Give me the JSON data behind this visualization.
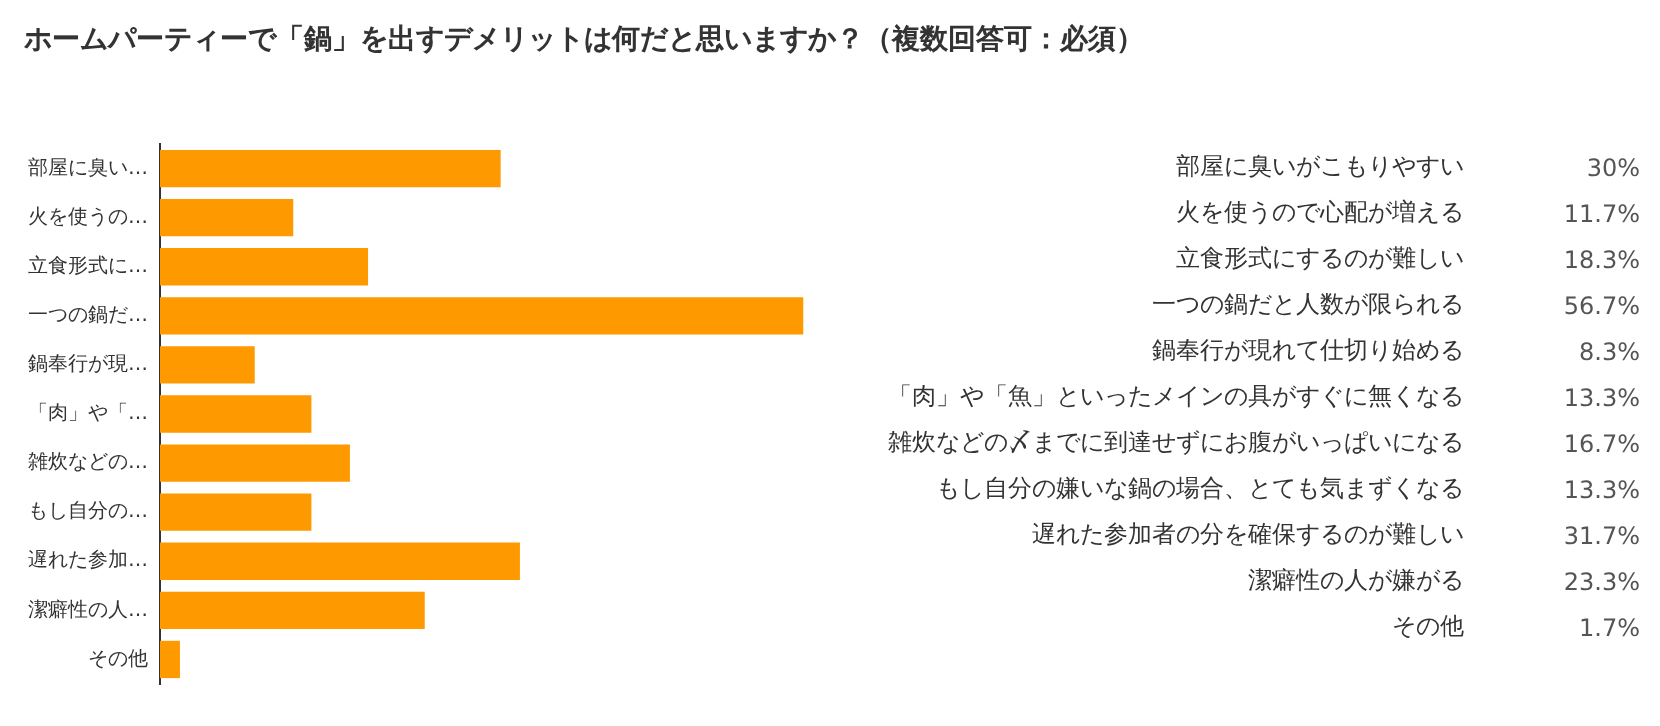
{
  "chart_data": {
    "type": "bar",
    "orientation": "horizontal",
    "title": "ホームパーティーで「鍋」を出すデメリットは何だと思いますか？（複数回答可：必須）",
    "categories": [
      "部屋に臭い…",
      "火を使うの…",
      "立食形式に…",
      "一つの鍋だ…",
      "鍋奉行が現…",
      "「肉」や「…",
      "雑炊などの…",
      "もし自分の…",
      "遅れた参加…",
      "潔癖性の人…",
      "その他"
    ],
    "values": [
      30,
      11.7,
      18.3,
      56.7,
      8.3,
      13.3,
      16.7,
      13.3,
      31.7,
      23.3,
      1.7
    ],
    "value_labels": [
      "30%",
      "11.7%",
      "18.3%",
      "56.7%",
      "8.3%",
      "13.3%",
      "16.7%",
      "13.3%",
      "31.7%",
      "23.3%",
      "1.7%"
    ],
    "annotations": [
      "部屋に臭いがこもりやすい",
      "火を使うので心配が増える",
      "立食形式にするのが難しい",
      "一つの鍋だと人数が限られる",
      "鍋奉行が現れて仕切り始める",
      "「肉」や「魚」といったメインの具がすぐに無くなる",
      "雑炊などの〆までに到達せずにお腹がいっぱいになる",
      "もし自分の嫌いな鍋の場合、とても気まずくなる",
      "遅れた参加者の分を確保するのが難しい",
      "潔癖性の人が嫌がる",
      "その他"
    ],
    "color": "#ff9900",
    "grid": false,
    "legend": false
  }
}
